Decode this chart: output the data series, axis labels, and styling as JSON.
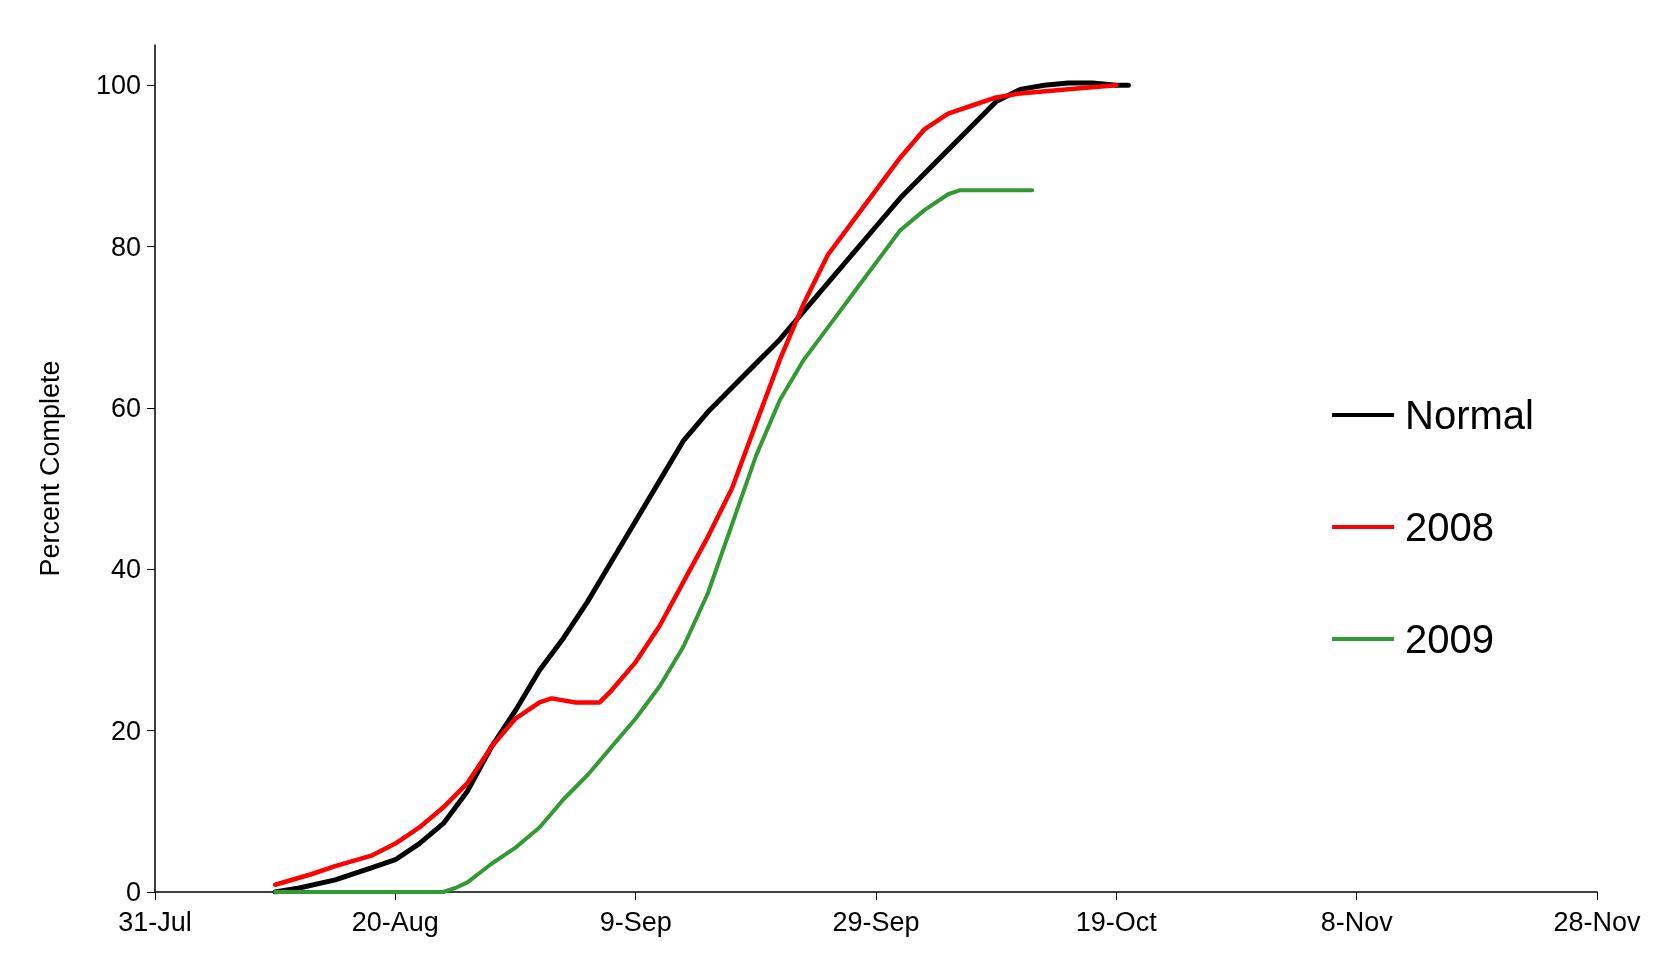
{
  "chart_data": {
    "type": "line",
    "ylabel": "Percent Complete",
    "xlim": [
      "--07-31",
      "--11-28"
    ],
    "xticks": [
      {
        "value": "--07-31",
        "label": "31-Jul"
      },
      {
        "value": "--08-20",
        "label": "20-Aug"
      },
      {
        "value": "--09-09",
        "label": "9-Sep"
      },
      {
        "value": "--09-29",
        "label": "29-Sep"
      },
      {
        "value": "--10-19",
        "label": "19-Oct"
      },
      {
        "value": "--11-08",
        "label": "8-Nov"
      },
      {
        "value": "--11-28",
        "label": "28-Nov"
      }
    ],
    "ylim": [
      0,
      105
    ],
    "yticks": [
      0,
      20,
      40,
      60,
      80,
      100
    ],
    "grid": false,
    "legend": "right",
    "marker": "none",
    "line_style": "solid",
    "series": [
      {
        "name": "Normal",
        "color": "#000000",
        "x": [
          "--08-10",
          "--08-12",
          "--08-15",
          "--08-18",
          "--08-20",
          "--08-22",
          "--08-24",
          "--08-26",
          "--08-28",
          "--08-30",
          "--09-01",
          "--09-03",
          "--09-05",
          "--09-07",
          "--09-09",
          "--09-11",
          "--09-13",
          "--09-15",
          "--09-17",
          "--09-19",
          "--09-21",
          "--09-23",
          "--09-25",
          "--09-27",
          "--09-29",
          "--10-01",
          "--10-03",
          "--10-05",
          "--10-07",
          "--10-09",
          "--10-11",
          "--10-13",
          "--10-15",
          "--10-17",
          "--10-19",
          "--10-20"
        ],
        "values": [
          0,
          0.5,
          1.5,
          3,
          4,
          6,
          8.5,
          12.5,
          18,
          22.5,
          27.5,
          31.5,
          36,
          41,
          46,
          51,
          56,
          59.5,
          62.5,
          65.5,
          68.5,
          72,
          75.5,
          79,
          82.5,
          86,
          89,
          92,
          95,
          98,
          99.5,
          100,
          100.3,
          100.3,
          100,
          100
        ]
      },
      {
        "name": "2008",
        "color": "#ff0000",
        "x": [
          "--08-10",
          "--08-13",
          "--08-15",
          "--08-18",
          "--08-20",
          "--08-22",
          "--08-24",
          "--08-26",
          "--08-28",
          "--08-30",
          "--09-01",
          "--09-02",
          "--09-04",
          "--09-06",
          "--09-07",
          "--09-09",
          "--09-11",
          "--09-13",
          "--09-15",
          "--09-17",
          "--09-19",
          "--09-21",
          "--09-23",
          "--09-25",
          "--09-27",
          "--09-29",
          "--10-01",
          "--10-03",
          "--10-05",
          "--10-07",
          "--10-09",
          "--10-11",
          "--10-15",
          "--10-19"
        ],
        "values": [
          0.9,
          2.2,
          3.2,
          4.5,
          6,
          8,
          10.5,
          13.5,
          18,
          21.5,
          23.5,
          24,
          23.5,
          23.5,
          25,
          28.5,
          33,
          38.5,
          44,
          50,
          58,
          66,
          73,
          79,
          83,
          87,
          91,
          94.5,
          96.5,
          97.5,
          98.5,
          99,
          99.5,
          100
        ]
      },
      {
        "name": "2009",
        "color": "#339933",
        "x": [
          "--08-10",
          "--08-18",
          "--08-24",
          "--08-25",
          "--08-26",
          "--08-28",
          "--08-30",
          "--09-01",
          "--09-03",
          "--09-05",
          "--09-07",
          "--09-09",
          "--09-11",
          "--09-13",
          "--09-15",
          "--09-17",
          "--09-19",
          "--09-21",
          "--09-23",
          "--09-25",
          "--09-27",
          "--09-29",
          "--10-01",
          "--10-03",
          "--10-05",
          "--10-06",
          "--10-12"
        ],
        "values": [
          0,
          0,
          0,
          0.5,
          1.2,
          3.5,
          5.5,
          8,
          11.5,
          14.5,
          18,
          21.5,
          25.5,
          30.5,
          37,
          45.5,
          54,
          61,
          66,
          70,
          74,
          78,
          82,
          84.5,
          86.5,
          87,
          87
        ]
      }
    ]
  }
}
